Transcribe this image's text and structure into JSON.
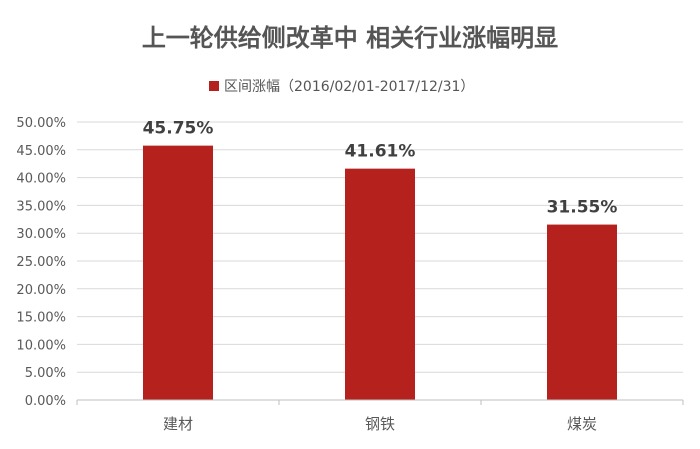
{
  "chart_data": {
    "type": "bar",
    "title": "上一轮供给侧改革中 相关行业涨幅明显",
    "categories": [
      "建材",
      "钢铁",
      "煤炭"
    ],
    "series": [
      {
        "name": "区间涨幅（2016/02/01-2017/12/31）",
        "values": [
          45.75,
          41.61,
          31.55
        ],
        "color": "#b5211d"
      }
    ],
    "data_labels": [
      "45.75%",
      "41.61%",
      "31.55%"
    ],
    "ylim": [
      0,
      50
    ],
    "yticks": [
      0,
      5,
      10,
      15,
      20,
      25,
      30,
      35,
      40,
      45,
      50
    ],
    "ytick_labels": [
      "0.00%",
      "5.00%",
      "10.00%",
      "15.00%",
      "20.00%",
      "25.00%",
      "30.00%",
      "35.00%",
      "40.00%",
      "45.00%",
      "50.00%"
    ],
    "xlabel": "",
    "ylabel": "",
    "grid": true,
    "legend_position": "top"
  }
}
